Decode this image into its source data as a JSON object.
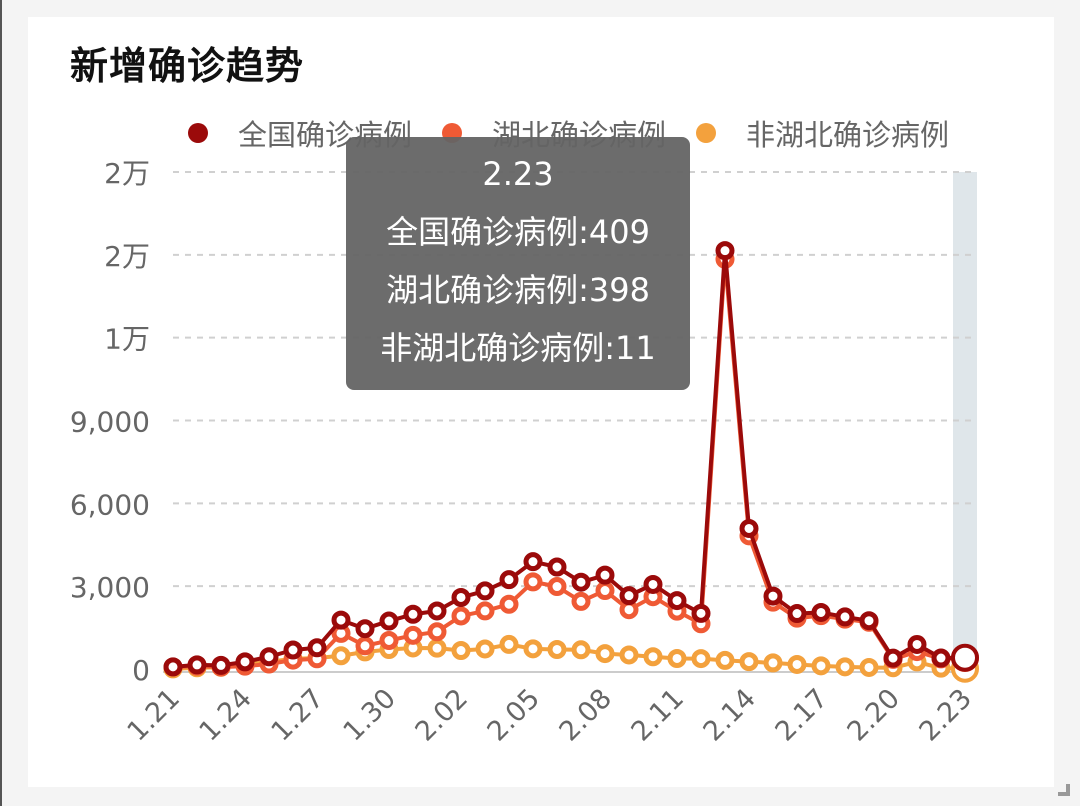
{
  "card": {
    "title": "新增确诊趋势"
  },
  "legend": [
    {
      "label": "全国确诊病例",
      "color": "#9b0a0a"
    },
    {
      "label": "湖北确诊病例",
      "color": "#ef5a35"
    },
    {
      "label": "非湖北确诊病例",
      "color": "#f3a13d"
    }
  ],
  "y_axis": {
    "ticks": [
      "0",
      "3,000",
      "6,000",
      "9,000",
      "1万",
      "2万",
      "2万"
    ]
  },
  "x_axis": {
    "ticks": [
      "1.21",
      "1.24",
      "1.27",
      "1.30",
      "2.02",
      "2.05",
      "2.08",
      "2.11",
      "2.14",
      "2.17",
      "2.20",
      "2.23"
    ]
  },
  "tooltip": {
    "date": "2.23",
    "line1": "全国确诊病例:409",
    "line2": "湖北确诊病例:398",
    "line3": "非湖北确诊病例:11"
  },
  "chart_data": {
    "type": "line",
    "title": "新增确诊趋势",
    "xlabel": "",
    "ylabel": "",
    "ylim": [
      0,
      18000
    ],
    "grid": true,
    "legend_position": "top",
    "x": [
      "1.21",
      "1.22",
      "1.23",
      "1.24",
      "1.25",
      "1.26",
      "1.27",
      "1.28",
      "1.29",
      "1.30",
      "1.31",
      "2.01",
      "2.02",
      "2.03",
      "2.04",
      "2.05",
      "2.06",
      "2.07",
      "2.08",
      "2.09",
      "2.10",
      "2.11",
      "2.12",
      "2.13",
      "2.14",
      "2.15",
      "2.16",
      "2.17",
      "2.18",
      "2.19",
      "2.20",
      "2.21",
      "2.22",
      "2.23"
    ],
    "series": [
      {
        "name": "全国确诊病例",
        "color": "#9b0a0a",
        "values": [
          77,
          149,
          131,
          259,
          444,
          688,
          769,
          1771,
          1459,
          1737,
          1982,
          2102,
          2590,
          2829,
          3235,
          3887,
          3694,
          3143,
          3399,
          2656,
          3062,
          2478,
          2015,
          15152,
          5090,
          2641,
          2008,
          2048,
          1886,
          1749,
          394,
          889,
          397,
          409
        ]
      },
      {
        "name": "湖北确诊病例",
        "color": "#ef5a35",
        "values": [
          72,
          105,
          69,
          105,
          180,
          323,
          371,
          1291,
          840,
          1032,
          1220,
          1347,
          1921,
          2103,
          2345,
          3156,
          2987,
          2447,
          2841,
          2147,
          2618,
          2097,
          1638,
          14840,
          4823,
          2420,
          1843,
          1933,
          1807,
          1693,
          349,
          631,
          366,
          398
        ]
      },
      {
        "name": "非湖北确诊病例",
        "color": "#f3a13d",
        "values": [
          5,
          44,
          62,
          154,
          264,
          365,
          398,
          480,
          619,
          705,
          762,
          755,
          669,
          726,
          890,
          731,
          707,
          696,
          558,
          509,
          444,
          381,
          377,
          312,
          267,
          221,
          165,
          115,
          79,
          56,
          45,
          258,
          31,
          11
        ]
      }
    ],
    "highlighted_point": {
      "x": "2.23",
      "values": {
        "全国确诊病例": 409,
        "湖北确诊病例": 398,
        "非湖北确诊病例": 11
      }
    }
  }
}
